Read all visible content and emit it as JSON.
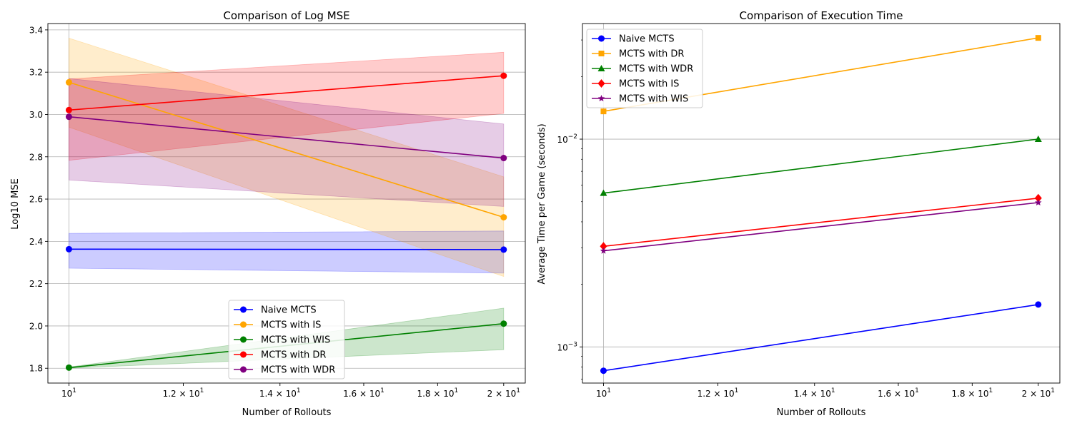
{
  "chart_data": [
    {
      "type": "line",
      "title": "Comparison of Log MSE",
      "xlabel": "Number of Rollouts",
      "ylabel": "Log10 MSE",
      "x_scale": "log",
      "x": [
        10,
        20
      ],
      "xlim": [
        9.67,
        20.7
      ],
      "x_ticks": [
        {
          "value": 10,
          "base": "10",
          "exp": "1"
        },
        {
          "value": 12,
          "base": "1.2 × 10",
          "exp": "1"
        },
        {
          "value": 14,
          "base": "1.4 × 10",
          "exp": "1"
        },
        {
          "value": 16,
          "base": "1.6 × 10",
          "exp": "1"
        },
        {
          "value": 18,
          "base": "1.8 × 10",
          "exp": "1"
        },
        {
          "value": 20,
          "base": "2 × 10",
          "exp": "1"
        }
      ],
      "ylim": [
        1.73,
        3.43
      ],
      "y_ticks": [
        {
          "value": 1.8,
          "label": "1.8"
        },
        {
          "value": 2.0,
          "label": "2.0"
        },
        {
          "value": 2.2,
          "label": "2.2"
        },
        {
          "value": 2.4,
          "label": "2.4"
        },
        {
          "value": 2.6,
          "label": "2.6"
        },
        {
          "value": 2.8,
          "label": "2.8"
        },
        {
          "value": 3.0,
          "label": "3.0"
        },
        {
          "value": 3.2,
          "label": "3.2"
        },
        {
          "value": 3.4,
          "label": "3.4"
        }
      ],
      "grid": true,
      "legend_position": "lower center",
      "series": [
        {
          "name": "Naive MCTS",
          "color": "#0000ff",
          "marker": "circle",
          "values": [
            2.363,
            2.361
          ],
          "lower": [
            2.273,
            2.25
          ],
          "upper": [
            2.438,
            2.449
          ]
        },
        {
          "name": "MCTS with IS",
          "color": "#ffa500",
          "marker": "circle",
          "values": [
            3.152,
            2.514
          ],
          "lower": [
            2.94,
            2.234
          ],
          "upper": [
            3.361,
            2.705
          ]
        },
        {
          "name": "MCTS with WIS",
          "color": "#008000",
          "marker": "circle",
          "values": [
            1.803,
            2.011
          ],
          "lower": [
            1.8,
            1.888
          ],
          "upper": [
            1.806,
            2.084
          ]
        },
        {
          "name": "MCTS with DR",
          "color": "#ff0000",
          "marker": "circle",
          "values": [
            3.021,
            3.183
          ],
          "lower": [
            2.783,
            3.005
          ],
          "upper": [
            3.168,
            3.294
          ]
        },
        {
          "name": "MCTS with WDR",
          "color": "#800080",
          "marker": "circle",
          "values": [
            2.989,
            2.794
          ],
          "lower": [
            2.69,
            2.565
          ],
          "upper": [
            3.17,
            2.955
          ]
        }
      ]
    },
    {
      "type": "line",
      "title": "Comparison of Execution Time",
      "xlabel": "Number of Rollouts",
      "ylabel": "Average Time per Game (seconds)",
      "x_scale": "log",
      "y_scale": "log",
      "x": [
        10,
        20
      ],
      "xlim": [
        9.67,
        20.7
      ],
      "x_ticks": [
        {
          "value": 10,
          "base": "10",
          "exp": "1"
        },
        {
          "value": 12,
          "base": "1.2 × 10",
          "exp": "1"
        },
        {
          "value": 14,
          "base": "1.4 × 10",
          "exp": "1"
        },
        {
          "value": 16,
          "base": "1.6 × 10",
          "exp": "1"
        },
        {
          "value": 18,
          "base": "1.8 × 10",
          "exp": "1"
        },
        {
          "value": 20,
          "base": "2 × 10",
          "exp": "1"
        }
      ],
      "ylim": [
        0.00067,
        0.036
      ],
      "y_ticks": [
        {
          "value": 0.001,
          "base": "10",
          "exp": "−3"
        },
        {
          "value": 0.01,
          "base": "10",
          "exp": "−2"
        }
      ],
      "grid": true,
      "legend_position": "upper left",
      "series": [
        {
          "name": "Naive MCTS",
          "color": "#0000ff",
          "marker": "circle",
          "values": [
            0.000768,
            0.0016
          ]
        },
        {
          "name": "MCTS with DR",
          "color": "#ffa500",
          "marker": "square",
          "values": [
            0.0136,
            0.0307
          ]
        },
        {
          "name": "MCTS with WDR",
          "color": "#008000",
          "marker": "triangle",
          "values": [
            0.0055,
            0.01
          ]
        },
        {
          "name": "MCTS with IS",
          "color": "#ff0000",
          "marker": "diamond",
          "values": [
            0.00305,
            0.0052
          ]
        },
        {
          "name": "MCTS with WIS",
          "color": "#800080",
          "marker": "star",
          "values": [
            0.0029,
            0.00495
          ]
        }
      ]
    }
  ]
}
